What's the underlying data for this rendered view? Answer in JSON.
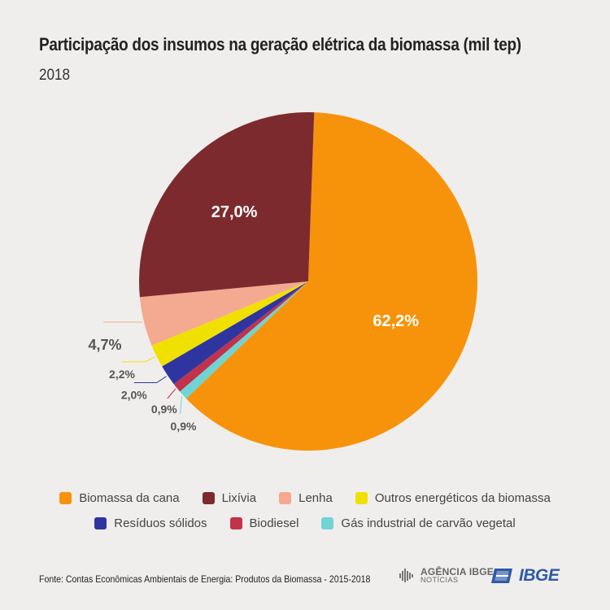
{
  "title": "Participação dos insumos na geração elétrica da biomassa (mil tep)",
  "subtitle": "2018",
  "chart_data": {
    "type": "pie",
    "title": "Participação dos insumos na geração elétrica da biomassa (mil tep)",
    "subtitle": "2018",
    "unit": "%",
    "slices": [
      {
        "name": "Biomassa da cana",
        "value": 62.2,
        "label": "62,2%",
        "color": "#f7930a"
      },
      {
        "name": "Gás industrial de carvão vegetal",
        "value": 0.9,
        "label": "0,9%",
        "color": "#6fd4d4"
      },
      {
        "name": "Biodiesel",
        "value": 0.9,
        "label": "0,9%",
        "color": "#c0334b"
      },
      {
        "name": "Resíduos sólidos",
        "value": 2.0,
        "label": "2,0%",
        "color": "#2e35a0"
      },
      {
        "name": "Outros energéticos da biomassa",
        "value": 2.2,
        "label": "2,2%",
        "color": "#f0e000"
      },
      {
        "name": "Lenha",
        "value": 4.7,
        "label": "4,7%",
        "color": "#f4a991"
      },
      {
        "name": "Lixívia",
        "value": 27.0,
        "label": "27,0%",
        "color": "#7d2a2e"
      }
    ],
    "legend_placement": "bottom"
  },
  "legend": {
    "row1": [
      {
        "label": "Biomassa da cana",
        "color": "#f7930a"
      },
      {
        "label": "Lixívia",
        "color": "#7d2a2e"
      },
      {
        "label": "Lenha",
        "color": "#f4a991"
      },
      {
        "label": "Outros energéticos da biomassa",
        "color": "#f0e000"
      }
    ],
    "row2": [
      {
        "label": "Resíduos sólidos",
        "color": "#2e35a0"
      },
      {
        "label": "Biodiesel",
        "color": "#c0334b"
      },
      {
        "label": "Gás industrial de carvão vegetal",
        "color": "#6fd4d4"
      }
    ]
  },
  "source": "Fonte: Contas Econômicas Ambientais de Energia: Produtos da Biomassa - 2015-2018",
  "logos": {
    "agencia_line1": "AGÊNCIA IBGE",
    "agencia_line2": "NOTÍCIAS",
    "ibge": "IBGE",
    "ibge_icon": "ibge-flag-icon",
    "agencia_icon": "agencia-bars-icon"
  }
}
